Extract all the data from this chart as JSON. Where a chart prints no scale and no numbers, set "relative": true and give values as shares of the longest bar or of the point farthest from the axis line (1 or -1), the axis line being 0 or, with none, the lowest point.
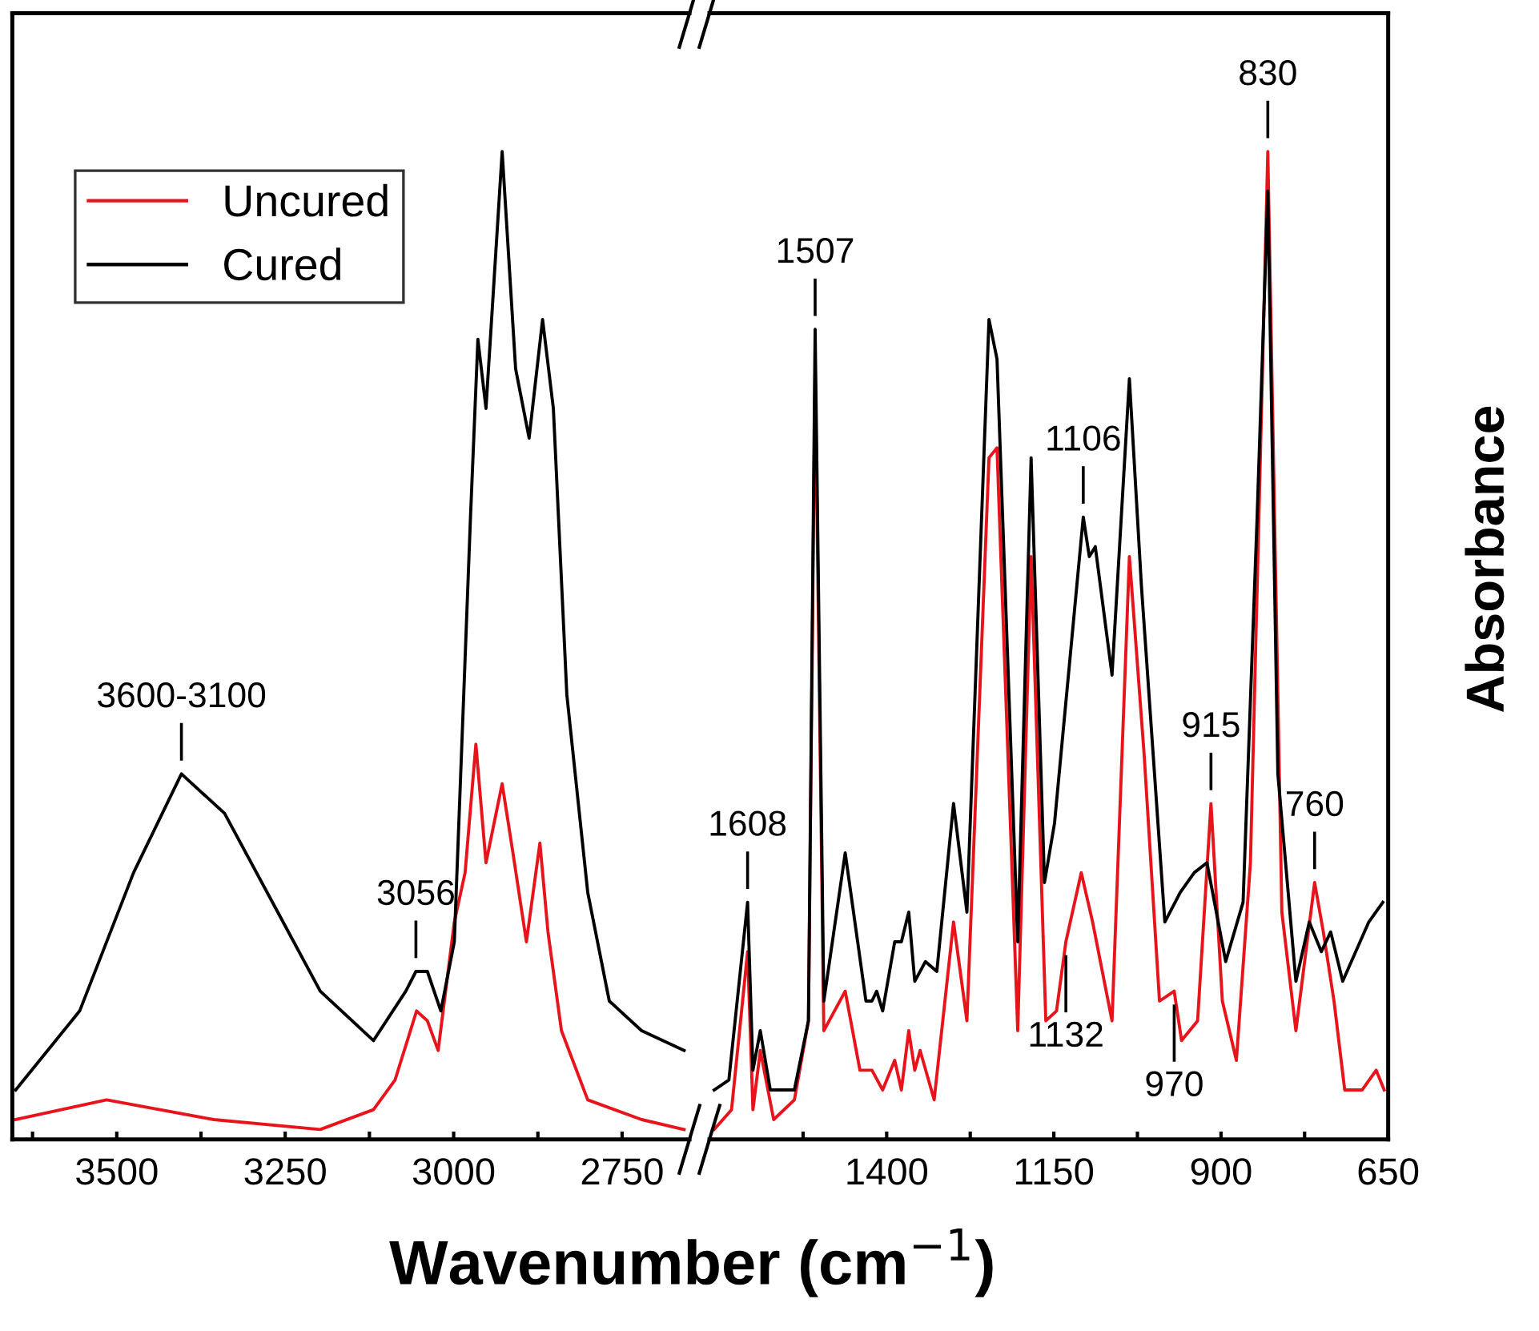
{
  "chart_data": [
    {
      "type": "line",
      "relative": true,
      "xlabel": "Wavenumber (cm$^{−1}$)",
      "legend": "top left",
      "tick_labels": "x",
      "xlim": [
        3655,
        2650
      ],
      "xticks": [
        {
          "value": 3625,
          "label": null
        },
        3500,
        {
          "value": 3375,
          "label": null
        },
        3250,
        {
          "value": 3125,
          "label": null
        },
        3000,
        {
          "value": 2875,
          "label": null
        },
        2750
      ],
      "series": [
        {
          "name": "Uncured",
          "color": "#e8141c",
          "x": [
            3650,
            3515,
            3356,
            3198,
            3119,
            3087,
            3055,
            3039,
            3023,
            2999,
            2983,
            2967,
            2952,
            2928,
            2912,
            2892,
            2872,
            2860,
            2840,
            2801,
            2721,
            2658
          ],
          "values": [
            0.02,
            0.04,
            0.02,
            0.01,
            0.03,
            0.06,
            0.13,
            0.12,
            0.09,
            0.22,
            0.27,
            0.4,
            0.28,
            0.36,
            0.29,
            0.2,
            0.3,
            0.21,
            0.11,
            0.04,
            0.02,
            0.01
          ]
        },
        {
          "name": "Cured",
          "color": "#000000",
          "x": [
            3650,
            3555,
            3475,
            3404,
            3340,
            3261,
            3198,
            3119,
            3071,
            3056,
            3039,
            3019,
            2999,
            2975,
            2964,
            2952,
            2928,
            2908,
            2888,
            2868,
            2852,
            2832,
            2801,
            2769,
            2721,
            2658
          ],
          "values": [
            0.05,
            0.13,
            0.27,
            0.37,
            0.33,
            0.23,
            0.15,
            0.1,
            0.15,
            0.17,
            0.17,
            0.13,
            0.2,
            0.63,
            0.81,
            0.74,
            1.0,
            0.78,
            0.71,
            0.83,
            0.74,
            0.45,
            0.25,
            0.14,
            0.11,
            0.09
          ]
        }
      ],
      "annotations": [
        {
          "text": "3600-3100",
          "x": 3404,
          "y": 0.37
        },
        {
          "text": "3056",
          "x": 3056,
          "y": 0.17
        }
      ]
    },
    {
      "type": "line",
      "relative": true,
      "ylabel": "Absorbance",
      "tick_labels": "x",
      "xlim": [
        1665,
        650
      ],
      "xticks": [
        {
          "value": 1525,
          "label": null
        },
        1400,
        {
          "value": 1275,
          "label": null
        },
        1150,
        {
          "value": 1025,
          "label": null
        },
        900,
        {
          "value": 775,
          "label": null
        },
        650
      ],
      "series": [
        {
          "color": "#e8141c",
          "x": [
            1658,
            1632,
            1608,
            1600,
            1589,
            1569,
            1538,
            1517,
            1507,
            1494,
            1462,
            1440,
            1422,
            1406,
            1388,
            1378,
            1367,
            1358,
            1350,
            1329,
            1300,
            1280,
            1247,
            1235,
            1204,
            1184,
            1162,
            1146,
            1132,
            1109,
            1092,
            1063,
            1037,
            1015,
            992,
            970,
            959,
            935,
            915,
            898,
            877,
            856,
            830,
            809,
            788,
            760,
            747,
            731,
            715,
            689,
            668,
            656
          ],
          "values": [
            0.01,
            0.03,
            0.19,
            0.03,
            0.09,
            0.02,
            0.04,
            0.12,
            0.78,
            0.11,
            0.15,
            0.07,
            0.07,
            0.05,
            0.08,
            0.05,
            0.11,
            0.07,
            0.09,
            0.04,
            0.22,
            0.12,
            0.69,
            0.7,
            0.11,
            0.59,
            0.12,
            0.13,
            0.2,
            0.27,
            0.22,
            0.12,
            0.59,
            0.39,
            0.14,
            0.15,
            0.1,
            0.12,
            0.34,
            0.14,
            0.08,
            0.28,
            1.0,
            0.23,
            0.11,
            0.26,
            0.21,
            0.14,
            0.05,
            0.05,
            0.07,
            0.05
          ]
        },
        {
          "color": "#000000",
          "x": [
            1658,
            1636,
            1608,
            1600,
            1589,
            1574,
            1538,
            1517,
            1507,
            1494,
            1462,
            1431,
            1422,
            1415,
            1406,
            1388,
            1378,
            1367,
            1358,
            1342,
            1325,
            1300,
            1280,
            1247,
            1235,
            1204,
            1184,
            1164,
            1149,
            1106,
            1097,
            1088,
            1063,
            1037,
            1019,
            984,
            961,
            940,
            921,
            893,
            867,
            846,
            830,
            815,
            788,
            768,
            750,
            736,
            718,
            679,
            658
          ],
          "values": [
            0.05,
            0.06,
            0.24,
            0.07,
            0.11,
            0.05,
            0.05,
            0.12,
            0.82,
            0.14,
            0.29,
            0.14,
            0.14,
            0.15,
            0.13,
            0.2,
            0.2,
            0.23,
            0.16,
            0.18,
            0.17,
            0.34,
            0.23,
            0.83,
            0.79,
            0.2,
            0.69,
            0.26,
            0.32,
            0.63,
            0.59,
            0.6,
            0.47,
            0.77,
            0.56,
            0.22,
            0.25,
            0.27,
            0.28,
            0.18,
            0.24,
            0.63,
            0.96,
            0.37,
            0.16,
            0.22,
            0.19,
            0.21,
            0.16,
            0.22,
            0.24
          ]
        }
      ],
      "annotations": [
        {
          "text": "1608",
          "x": 1608,
          "y": 0.24
        },
        {
          "text": "1507",
          "x": 1507,
          "y": 0.82
        },
        {
          "text": "1106",
          "x": 1106,
          "y": 0.63
        },
        {
          "text": "1132",
          "x": 1132,
          "y": 0.2
        },
        {
          "text": "970",
          "x": 970,
          "y": 0.15
        },
        {
          "text": "915",
          "x": 915,
          "y": 0.34
        },
        {
          "text": "830",
          "x": 830,
          "y": 1.0
        },
        {
          "text": "760",
          "x": 760,
          "y": 0.26
        }
      ]
    }
  ]
}
